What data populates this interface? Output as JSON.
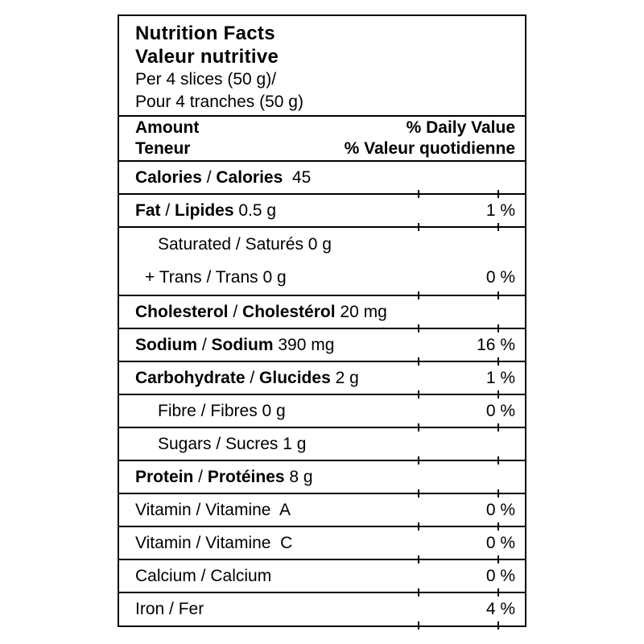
{
  "label": {
    "title_en": "Nutrition Facts",
    "title_fr": "Valeur nutritive",
    "serving_en": "Per 4 slices (50 g)/",
    "serving_fr": "Pour 4 tranches (50 g)",
    "columns": {
      "amount_en": "Amount",
      "amount_fr": "Teneur",
      "daily_value_en": "% Daily Value",
      "daily_value_fr": "% Valeur quotidienne"
    },
    "colors": {
      "text": "#000000",
      "background": "#ffffff",
      "border": "#000000"
    },
    "rows": [
      {
        "id": "calories",
        "lines": [
          {
            "segs": [
              {
                "t": "Calories",
                "b": true
              },
              {
                "t": " / ",
                "b": false
              },
              {
                "t": "Calories",
                "b": true
              },
              {
                "t": "  45",
                "b": false
              }
            ],
            "dv": ""
          }
        ]
      },
      {
        "id": "fat",
        "lines": [
          {
            "segs": [
              {
                "t": "Fat",
                "b": true
              },
              {
                "t": " / ",
                "b": false
              },
              {
                "t": "Lipides",
                "b": true
              },
              {
                "t": " 0.5 g",
                "b": false
              }
            ],
            "dv": "1 %"
          }
        ]
      },
      {
        "id": "saturated-trans",
        "group": true,
        "lines": [
          {
            "segs": [
              {
                "t": "Saturated / Saturés 0 g",
                "b": false
              }
            ],
            "dv": "",
            "indent": 28
          },
          {
            "segs": [
              {
                "t": "+ Trans / Trans 0 g",
                "b": false
              }
            ],
            "dv": "0 %",
            "indent": 12
          }
        ]
      },
      {
        "id": "cholesterol",
        "lines": [
          {
            "segs": [
              {
                "t": "Cholesterol",
                "b": true
              },
              {
                "t": " / ",
                "b": false
              },
              {
                "t": "Cholestérol",
                "b": true
              },
              {
                "t": " 20 mg",
                "b": false
              }
            ],
            "dv": ""
          }
        ]
      },
      {
        "id": "sodium",
        "lines": [
          {
            "segs": [
              {
                "t": "Sodium",
                "b": true
              },
              {
                "t": " / ",
                "b": false
              },
              {
                "t": "Sodium",
                "b": true
              },
              {
                "t": " 390 mg",
                "b": false
              }
            ],
            "dv": "16 %"
          }
        ]
      },
      {
        "id": "carbohydrate",
        "lines": [
          {
            "segs": [
              {
                "t": "Carbohydrate",
                "b": true
              },
              {
                "t": " / ",
                "b": false
              },
              {
                "t": "Glucides",
                "b": true
              },
              {
                "t": " 2 g",
                "b": false
              }
            ],
            "dv": "1 %"
          }
        ]
      },
      {
        "id": "fibre",
        "lines": [
          {
            "segs": [
              {
                "t": "Fibre / Fibres 0 g",
                "b": false
              }
            ],
            "dv": "0 %",
            "indent": 28
          }
        ]
      },
      {
        "id": "sugars",
        "lines": [
          {
            "segs": [
              {
                "t": "Sugars / Sucres 1 g",
                "b": false
              }
            ],
            "dv": "",
            "indent": 28
          }
        ]
      },
      {
        "id": "protein",
        "lines": [
          {
            "segs": [
              {
                "t": "Protein",
                "b": true
              },
              {
                "t": " / ",
                "b": false
              },
              {
                "t": "Protéines",
                "b": true
              },
              {
                "t": " 8 g",
                "b": false
              }
            ],
            "dv": ""
          }
        ]
      },
      {
        "id": "vitamin-a",
        "lines": [
          {
            "segs": [
              {
                "t": "Vitamin / Vitamine  A",
                "b": false
              }
            ],
            "dv": "0 %"
          }
        ]
      },
      {
        "id": "vitamin-c",
        "lines": [
          {
            "segs": [
              {
                "t": "Vitamin / Vitamine  C",
                "b": false
              }
            ],
            "dv": "0 %"
          }
        ]
      },
      {
        "id": "calcium",
        "lines": [
          {
            "segs": [
              {
                "t": "Calcium / Calcium",
                "b": false
              }
            ],
            "dv": "0 %"
          }
        ]
      },
      {
        "id": "iron",
        "lines": [
          {
            "segs": [
              {
                "t": "Iron / Fer",
                "b": false
              }
            ],
            "dv": "4 %"
          }
        ]
      }
    ]
  }
}
